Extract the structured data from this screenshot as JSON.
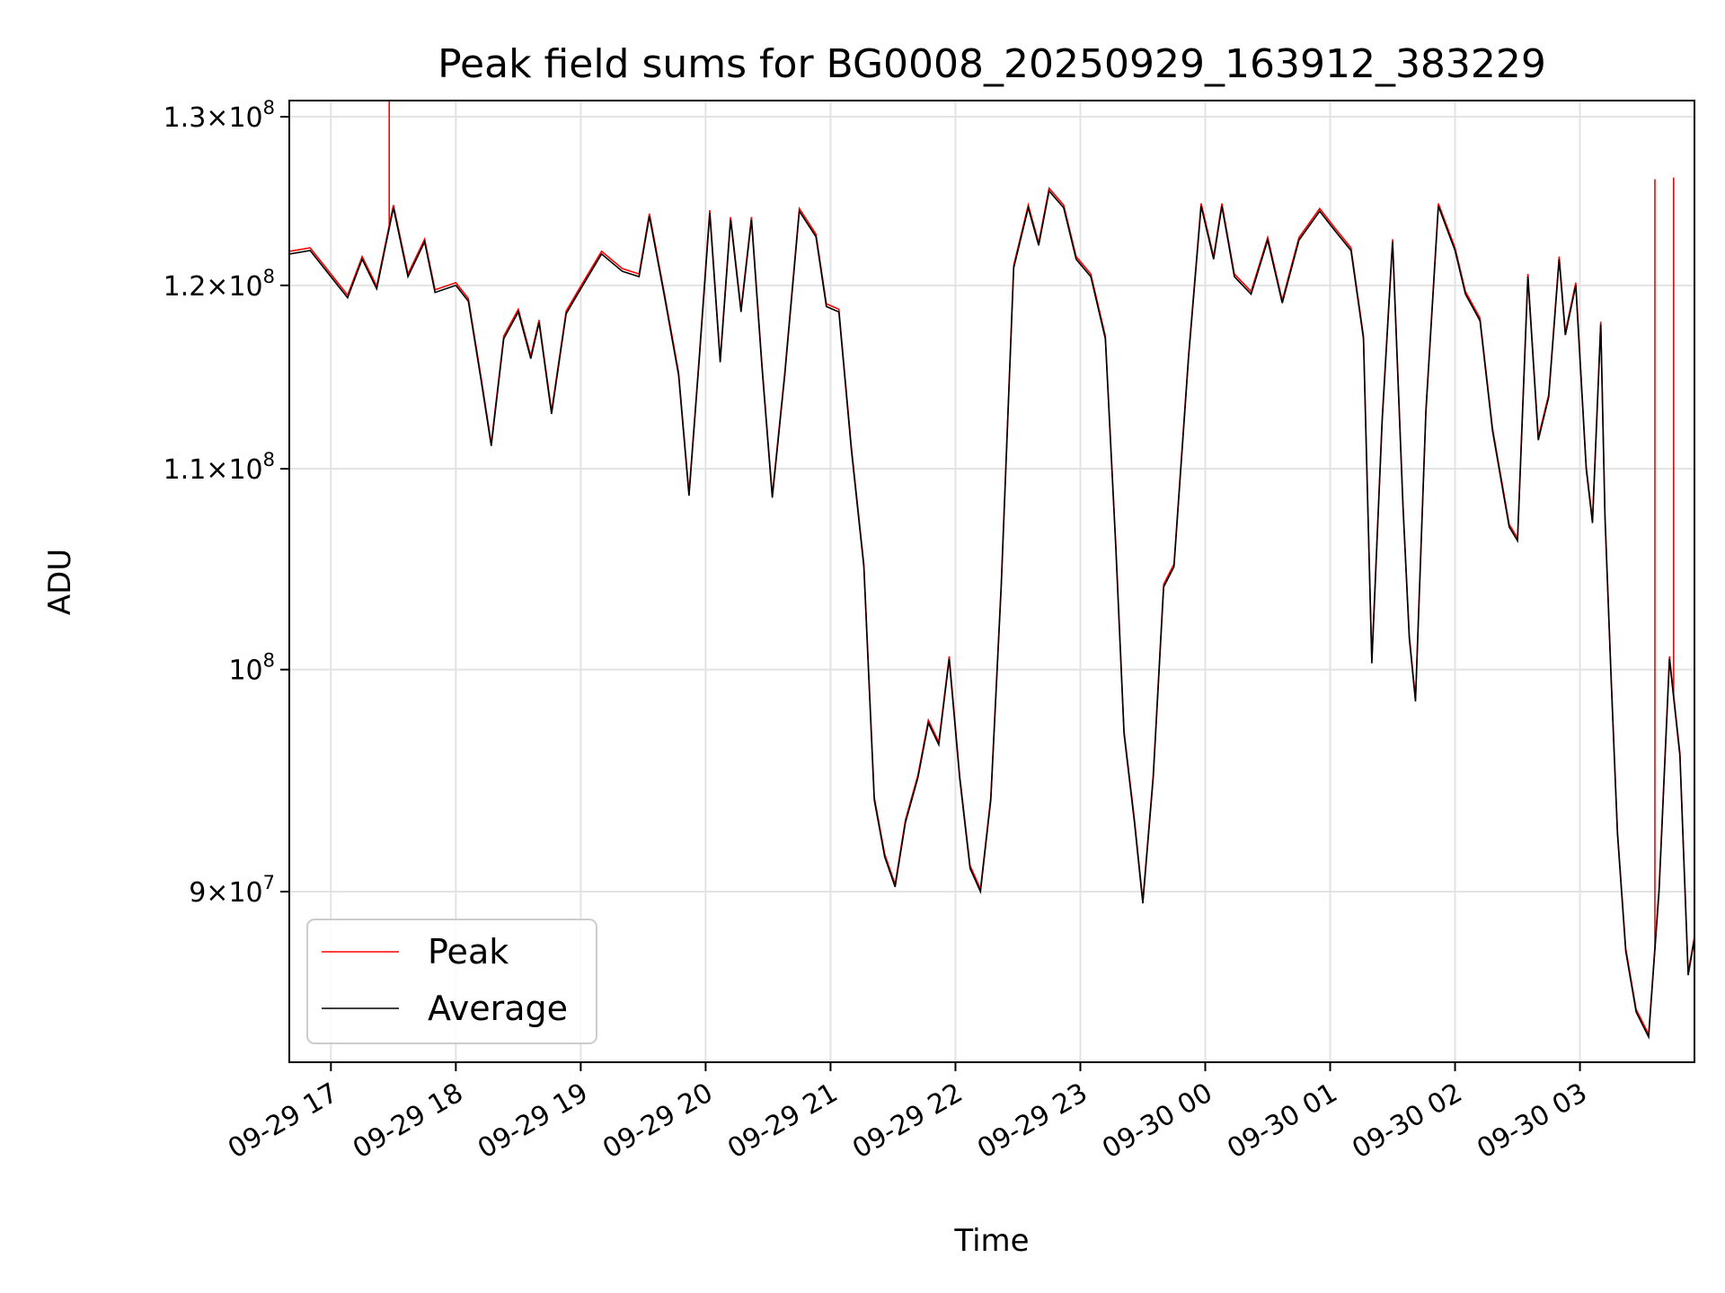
{
  "chart_data": {
    "type": "line",
    "title": "Peak field sums for BG0008_20250929_163912_383229",
    "xlabel": "Time",
    "ylabel": "ADU",
    "yscale": "log",
    "ylim": [
      83000000,
      131000000
    ],
    "xlim": [
      "2025-09-29 16:40",
      "2025-09-30 03:55"
    ],
    "grid": true,
    "legend_position": "lower-left",
    "x_ticks": [
      {
        "label": "09-29 17",
        "time": "2025-09-29 17:00"
      },
      {
        "label": "09-29 18",
        "time": "2025-09-29 18:00"
      },
      {
        "label": "09-29 19",
        "time": "2025-09-29 19:00"
      },
      {
        "label": "09-29 20",
        "time": "2025-09-29 20:00"
      },
      {
        "label": "09-29 21",
        "time": "2025-09-29 21:00"
      },
      {
        "label": "09-29 22",
        "time": "2025-09-29 22:00"
      },
      {
        "label": "09-29 23",
        "time": "2025-09-29 23:00"
      },
      {
        "label": "09-30 00",
        "time": "2025-09-30 00:00"
      },
      {
        "label": "09-30 01",
        "time": "2025-09-30 01:00"
      },
      {
        "label": "09-30 02",
        "time": "2025-09-30 02:00"
      },
      {
        "label": "09-30 03",
        "time": "2025-09-30 03:00"
      }
    ],
    "y_ticks": [
      {
        "value": 90000000,
        "mantissa": "9",
        "exponent": "7"
      },
      {
        "value": 100000000,
        "mantissa": "",
        "exponent": "8"
      },
      {
        "value": 110000000,
        "mantissa": "1.1",
        "exponent": "8"
      },
      {
        "value": 120000000,
        "mantissa": "1.2",
        "exponent": "8"
      },
      {
        "value": 130000000,
        "mantissa": "1.3",
        "exponent": "8"
      }
    ],
    "series": [
      {
        "name": "Peak",
        "color": "#ff0000",
        "spikes": [
          {
            "x": "2025-09-29 17:28",
            "y": 131000000
          },
          {
            "x": "2025-09-30 03:36",
            "y": 126200000
          },
          {
            "x": "2025-09-30 03:45",
            "y": 126300000
          }
        ]
      },
      {
        "name": "Average",
        "color": "#000000",
        "points": [
          [
            "2025-09-29 16:40",
            121800000
          ],
          [
            "2025-09-29 16:50",
            122000000
          ],
          [
            "2025-09-29 17:00",
            120500000
          ],
          [
            "2025-09-29 17:08",
            119300000
          ],
          [
            "2025-09-29 17:15",
            121500000
          ],
          [
            "2025-09-29 17:22",
            119800000
          ],
          [
            "2025-09-29 17:30",
            124500000
          ],
          [
            "2025-09-29 17:37",
            120500000
          ],
          [
            "2025-09-29 17:45",
            122500000
          ],
          [
            "2025-09-29 17:50",
            119600000
          ],
          [
            "2025-09-29 18:00",
            120000000
          ],
          [
            "2025-09-29 18:06",
            119100000
          ],
          [
            "2025-09-29 18:12",
            114800000
          ],
          [
            "2025-09-29 18:17",
            111200000
          ],
          [
            "2025-09-29 18:23",
            117000000
          ],
          [
            "2025-09-29 18:30",
            118500000
          ],
          [
            "2025-09-29 18:36",
            115900000
          ],
          [
            "2025-09-29 18:40",
            117900000
          ],
          [
            "2025-09-29 18:46",
            112900000
          ],
          [
            "2025-09-29 18:53",
            118400000
          ],
          [
            "2025-09-29 19:00",
            119800000
          ],
          [
            "2025-09-29 19:10",
            121800000
          ],
          [
            "2025-09-29 19:20",
            120800000
          ],
          [
            "2025-09-29 19:28",
            120500000
          ],
          [
            "2025-09-29 19:33",
            124000000
          ],
          [
            "2025-09-29 19:40",
            119500000
          ],
          [
            "2025-09-29 19:47",
            115000000
          ],
          [
            "2025-09-29 19:52",
            108600000
          ],
          [
            "2025-09-29 19:57",
            116000000
          ],
          [
            "2025-09-29 20:02",
            124200000
          ],
          [
            "2025-09-29 20:07",
            115700000
          ],
          [
            "2025-09-29 20:12",
            123800000
          ],
          [
            "2025-09-29 20:17",
            118500000
          ],
          [
            "2025-09-29 20:22",
            123800000
          ],
          [
            "2025-09-29 20:27",
            115500000
          ],
          [
            "2025-09-29 20:32",
            108500000
          ],
          [
            "2025-09-29 20:38",
            115000000
          ],
          [
            "2025-09-29 20:45",
            124300000
          ],
          [
            "2025-09-29 20:53",
            122800000
          ],
          [
            "2025-09-29 20:58",
            118800000
          ],
          [
            "2025-09-29 21:04",
            118500000
          ],
          [
            "2025-09-29 21:10",
            111000000
          ],
          [
            "2025-09-29 21:16",
            105000000
          ],
          [
            "2025-09-29 21:21",
            94000000
          ],
          [
            "2025-09-29 21:26",
            91500000
          ],
          [
            "2025-09-29 21:31",
            90200000
          ],
          [
            "2025-09-29 21:36",
            93000000
          ],
          [
            "2025-09-29 21:42",
            95000000
          ],
          [
            "2025-09-29 21:47",
            97500000
          ],
          [
            "2025-09-29 21:52",
            96500000
          ],
          [
            "2025-09-29 21:57",
            100500000
          ],
          [
            "2025-09-29 22:02",
            95000000
          ],
          [
            "2025-09-29 22:07",
            91000000
          ],
          [
            "2025-09-29 22:12",
            90000000
          ],
          [
            "2025-09-29 22:17",
            94000000
          ],
          [
            "2025-09-29 22:22",
            104000000
          ],
          [
            "2025-09-29 22:28",
            121000000
          ],
          [
            "2025-09-29 22:35",
            124500000
          ],
          [
            "2025-09-29 22:40",
            122300000
          ],
          [
            "2025-09-29 22:45",
            125500000
          ],
          [
            "2025-09-29 22:52",
            124500000
          ],
          [
            "2025-09-29 22:58",
            121500000
          ],
          [
            "2025-09-29 23:05",
            120500000
          ],
          [
            "2025-09-29 23:12",
            117000000
          ],
          [
            "2025-09-29 23:17",
            106000000
          ],
          [
            "2025-09-29 23:21",
            97000000
          ],
          [
            "2025-09-29 23:26",
            93000000
          ],
          [
            "2025-09-29 23:30",
            89500000
          ],
          [
            "2025-09-29 23:35",
            95000000
          ],
          [
            "2025-09-29 23:40",
            104000000
          ],
          [
            "2025-09-29 23:45",
            105000000
          ],
          [
            "2025-09-29 23:52",
            116000000
          ],
          [
            "2025-09-29 23:58",
            124600000
          ],
          [
            "2025-09-30 00:04",
            121500000
          ],
          [
            "2025-09-30 00:08",
            124600000
          ],
          [
            "2025-09-30 00:14",
            120500000
          ],
          [
            "2025-09-30 00:22",
            119500000
          ],
          [
            "2025-09-30 00:30",
            122600000
          ],
          [
            "2025-09-30 00:37",
            119000000
          ],
          [
            "2025-09-30 00:45",
            122600000
          ],
          [
            "2025-09-30 00:55",
            124300000
          ],
          [
            "2025-09-30 01:02",
            123200000
          ],
          [
            "2025-09-30 01:10",
            122000000
          ],
          [
            "2025-09-30 01:16",
            117000000
          ],
          [
            "2025-09-30 01:20",
            100300000
          ],
          [
            "2025-09-30 01:25",
            112500000
          ],
          [
            "2025-09-30 01:30",
            122500000
          ],
          [
            "2025-09-30 01:35",
            108000000
          ],
          [
            "2025-09-30 01:38",
            101500000
          ],
          [
            "2025-09-30 01:41",
            98500000
          ],
          [
            "2025-09-30 01:46",
            113000000
          ],
          [
            "2025-09-30 01:52",
            124600000
          ],
          [
            "2025-09-30 02:00",
            122000000
          ],
          [
            "2025-09-30 02:05",
            119500000
          ],
          [
            "2025-09-30 02:12",
            118000000
          ],
          [
            "2025-09-30 02:18",
            112000000
          ],
          [
            "2025-09-30 02:26",
            107000000
          ],
          [
            "2025-09-30 02:30",
            106300000
          ],
          [
            "2025-09-30 02:35",
            120500000
          ],
          [
            "2025-09-30 02:40",
            111500000
          ],
          [
            "2025-09-30 02:45",
            113800000
          ],
          [
            "2025-09-30 02:50",
            121500000
          ],
          [
            "2025-09-30 02:53",
            117200000
          ],
          [
            "2025-09-30 02:58",
            120000000
          ],
          [
            "2025-09-30 03:03",
            110000000
          ],
          [
            "2025-09-30 03:06",
            107200000
          ],
          [
            "2025-09-30 03:10",
            117800000
          ],
          [
            "2025-09-30 03:12",
            107500000
          ],
          [
            "2025-09-30 03:15",
            99500000
          ],
          [
            "2025-09-30 03:18",
            92500000
          ],
          [
            "2025-09-30 03:22",
            87500000
          ],
          [
            "2025-09-30 03:27",
            85000000
          ],
          [
            "2025-09-30 03:33",
            84000000
          ],
          [
            "2025-09-30 03:38",
            90000000
          ],
          [
            "2025-09-30 03:43",
            100500000
          ],
          [
            "2025-09-30 03:48",
            96000000
          ],
          [
            "2025-09-30 03:52",
            86500000
          ],
          [
            "2025-09-30 03:55",
            88000000
          ]
        ]
      }
    ]
  }
}
